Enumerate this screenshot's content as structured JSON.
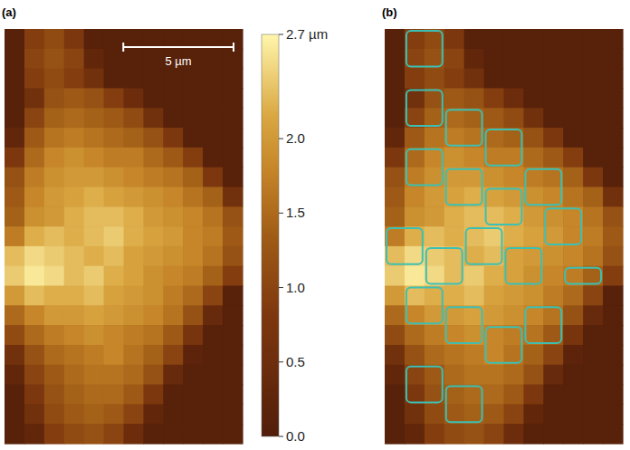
{
  "chart_data": {
    "type": "heatmap",
    "panels": [
      "(a)",
      "(b)"
    ],
    "cell_size": 0.9,
    "scale_bar": {
      "value": 5,
      "label": "5 µm"
    },
    "colorbar_range": [
      0,
      2.7
    ],
    "colorbar_ticks": [
      {
        "value": 0,
        "label": "0.0"
      },
      {
        "value": 0.5,
        "label": "0.5"
      },
      {
        "value": 1,
        "label": "1.0"
      },
      {
        "value": 1.5,
        "label": "1.5"
      },
      {
        "value": 2,
        "label": "2.0"
      },
      {
        "value": 2.7,
        "label": "2.7 µm"
      }
    ],
    "cells": [
      [
        0.1,
        0.9,
        1.1,
        0.8,
        0.1,
        0.1,
        0.1,
        0.1,
        0.1,
        0.1,
        0.1,
        0.1
      ],
      [
        0.1,
        1.0,
        1.2,
        1.0,
        0.3,
        0.1,
        0.1,
        0.1,
        0.1,
        0.1,
        0.1,
        0.1
      ],
      [
        0.1,
        0.9,
        1.1,
        0.9,
        0.6,
        0.1,
        0.1,
        0.1,
        0.1,
        0.1,
        0.1,
        0.1
      ],
      [
        0.1,
        0.6,
        1.2,
        1.3,
        1.2,
        0.9,
        0.5,
        0.1,
        0.1,
        0.1,
        0.1,
        0.1
      ],
      [
        0.1,
        1.0,
        1.4,
        1.5,
        1.4,
        1.3,
        1.1,
        0.6,
        0.1,
        0.1,
        0.1,
        0.1
      ],
      [
        0.3,
        1.3,
        1.6,
        1.7,
        1.6,
        1.5,
        1.4,
        1.2,
        0.8,
        0.1,
        0.1,
        0.1
      ],
      [
        0.8,
        1.5,
        1.8,
        1.9,
        1.8,
        1.7,
        1.7,
        1.5,
        1.3,
        0.9,
        0.1,
        0.1
      ],
      [
        1.2,
        1.7,
        1.9,
        2.0,
        2.0,
        1.9,
        1.8,
        1.7,
        1.6,
        1.4,
        0.8,
        0.1
      ],
      [
        1.3,
        1.8,
        2.0,
        2.1,
        2.2,
        2.1,
        2.0,
        1.9,
        1.8,
        1.6,
        1.4,
        0.6
      ],
      [
        1.4,
        1.9,
        2.0,
        2.2,
        2.3,
        2.3,
        2.2,
        2.0,
        1.9,
        1.8,
        1.6,
        1.2
      ],
      [
        1.7,
        2.2,
        2.3,
        2.2,
        2.3,
        2.4,
        2.2,
        2.1,
        2.0,
        1.8,
        1.7,
        1.3
      ],
      [
        2.3,
        2.5,
        2.4,
        2.3,
        2.2,
        2.3,
        2.1,
        2.0,
        1.9,
        1.8,
        1.6,
        1.2
      ],
      [
        2.4,
        2.6,
        2.5,
        2.3,
        2.4,
        2.2,
        2.1,
        1.9,
        1.8,
        1.7,
        1.4,
        0.9
      ],
      [
        2.0,
        2.3,
        2.2,
        2.2,
        2.3,
        2.1,
        2.0,
        1.9,
        1.7,
        1.5,
        1.0,
        0.1
      ],
      [
        1.5,
        1.8,
        2.0,
        2.0,
        2.1,
        2.0,
        1.9,
        1.8,
        1.6,
        1.2,
        0.4,
        0.1
      ],
      [
        1.1,
        1.5,
        1.7,
        1.8,
        1.9,
        1.8,
        1.7,
        1.6,
        1.3,
        0.7,
        0.1,
        0.1
      ],
      [
        0.6,
        1.2,
        1.5,
        1.6,
        1.7,
        1.8,
        1.6,
        1.4,
        1.0,
        0.2,
        0.1,
        0.1
      ],
      [
        0.3,
        1.0,
        1.3,
        1.5,
        1.6,
        1.6,
        1.5,
        1.2,
        0.4,
        0.1,
        0.1,
        0.1
      ],
      [
        0.1,
        0.8,
        1.2,
        1.4,
        1.5,
        1.5,
        1.3,
        0.8,
        0.1,
        0.1,
        0.1,
        0.1
      ],
      [
        0.1,
        0.6,
        1.1,
        1.3,
        1.4,
        1.3,
        1.0,
        0.3,
        0.1,
        0.1,
        0.1,
        0.1
      ],
      [
        0.1,
        0.3,
        0.9,
        1.1,
        1.2,
        1.0,
        0.5,
        0.1,
        0.1,
        0.1,
        0.1,
        0.1
      ]
    ],
    "grains": [
      [
        1,
        0,
        3,
        2
      ],
      [
        1,
        3,
        3,
        5
      ],
      [
        3,
        4,
        5,
        6
      ],
      [
        5,
        5,
        7,
        7
      ],
      [
        7,
        7,
        9,
        9
      ],
      [
        1,
        6,
        3,
        8
      ],
      [
        3,
        7,
        5,
        9
      ],
      [
        5,
        8,
        7,
        10
      ],
      [
        8,
        9,
        10,
        11
      ],
      [
        0,
        10,
        2,
        12
      ],
      [
        2,
        11,
        4,
        13
      ],
      [
        4,
        10,
        6,
        12
      ],
      [
        6,
        11,
        8,
        13
      ],
      [
        9,
        12,
        11,
        13
      ],
      [
        1,
        13,
        3,
        15
      ],
      [
        3,
        14,
        5,
        16
      ],
      [
        5,
        15,
        7,
        17
      ],
      [
        1,
        17,
        3,
        19
      ],
      [
        3,
        18,
        5,
        20
      ],
      [
        7,
        14,
        9,
        16
      ]
    ]
  }
}
